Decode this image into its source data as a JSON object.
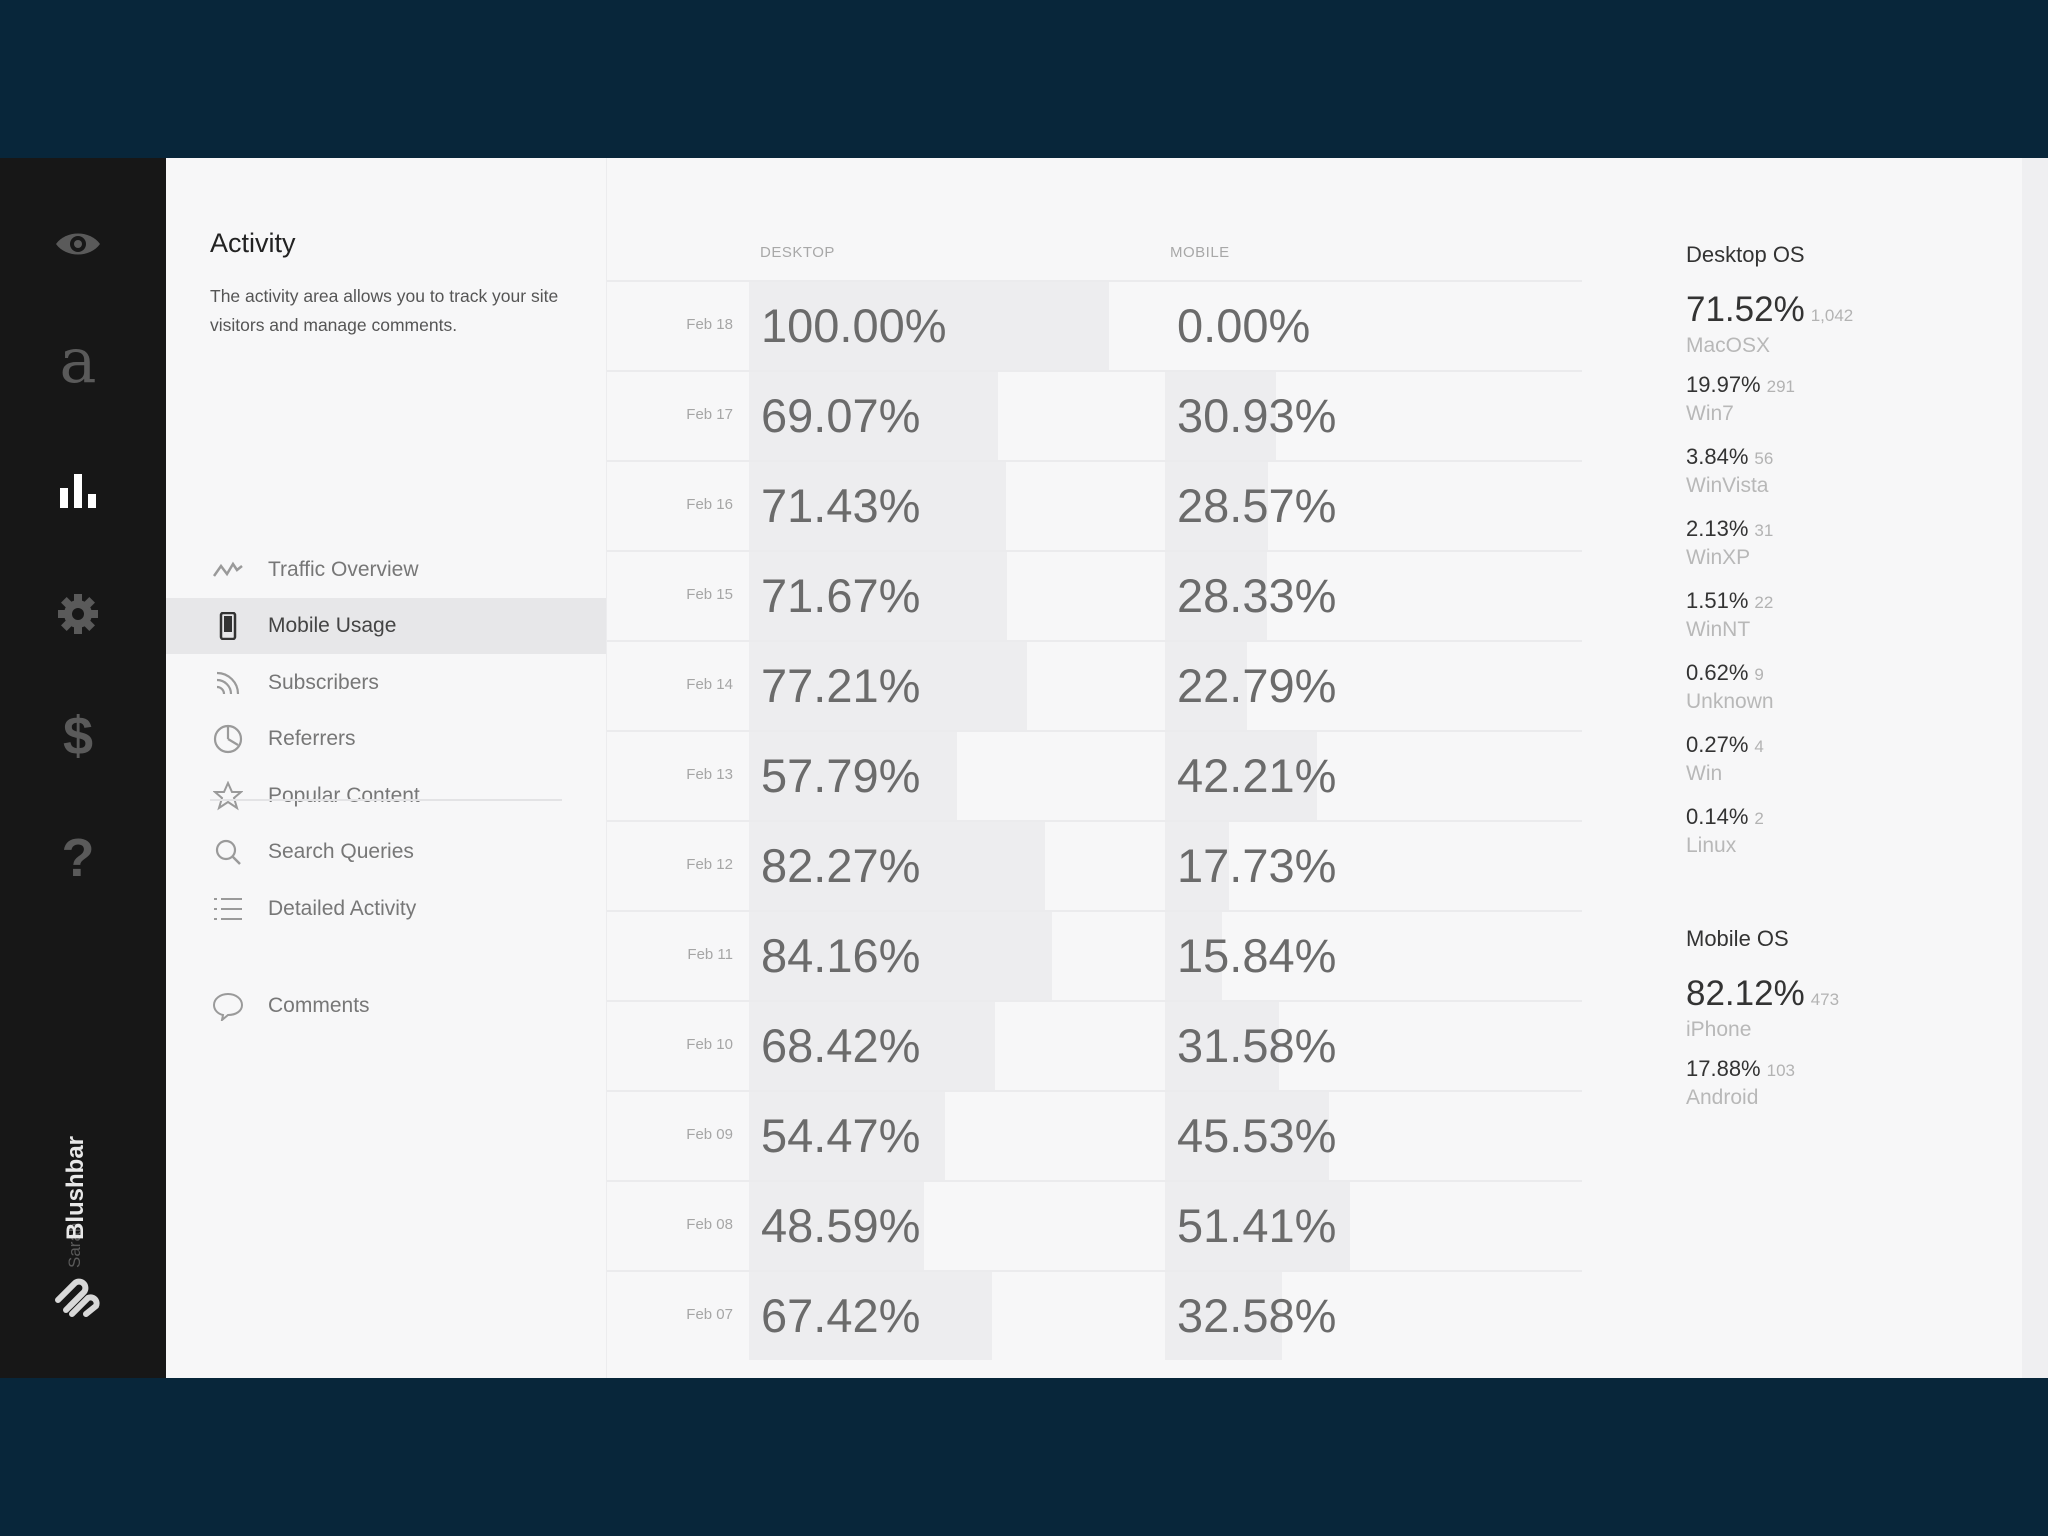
{
  "rail": {
    "items": [
      {
        "name": "view-icon"
      },
      {
        "name": "a-logo",
        "glyph": "a"
      },
      {
        "name": "stats-icon"
      },
      {
        "name": "gear-icon"
      },
      {
        "name": "dollar-icon",
        "glyph": "$"
      },
      {
        "name": "help-icon",
        "glyph": "?"
      }
    ],
    "user": "Sarah",
    "brand": "Blushbar"
  },
  "panel": {
    "title": "Activity",
    "description": "The activity area allows you to track your site visitors and manage comments.",
    "nav": [
      {
        "label": "Traffic Overview",
        "icon": "trend-icon",
        "selected": false
      },
      {
        "label": "Mobile Usage",
        "icon": "phone-icon",
        "selected": true
      },
      {
        "label": "Subscribers",
        "icon": "rss-icon",
        "selected": false
      },
      {
        "label": "Referrers",
        "icon": "pie-icon",
        "selected": false
      },
      {
        "label": "Popular Content",
        "icon": "star-icon",
        "selected": false
      },
      {
        "label": "Search Queries",
        "icon": "search-icon",
        "selected": false
      },
      {
        "label": "Detailed Activity",
        "icon": "list-icon",
        "selected": false
      }
    ],
    "comments": {
      "label": "Comments",
      "icon": "comment-icon"
    }
  },
  "table": {
    "desktop_header": "DESKTOP",
    "mobile_header": "MOBILE",
    "rows": [
      {
        "date": "Feb 18",
        "desktop": "100.00%",
        "desktop_value": 100.0,
        "mobile": "0.00%",
        "mobile_value": 0.0
      },
      {
        "date": "Feb 17",
        "desktop": "69.07%",
        "desktop_value": 69.07,
        "mobile": "30.93%",
        "mobile_value": 30.93
      },
      {
        "date": "Feb 16",
        "desktop": "71.43%",
        "desktop_value": 71.43,
        "mobile": "28.57%",
        "mobile_value": 28.57
      },
      {
        "date": "Feb 15",
        "desktop": "71.67%",
        "desktop_value": 71.67,
        "mobile": "28.33%",
        "mobile_value": 28.33
      },
      {
        "date": "Feb 14",
        "desktop": "77.21%",
        "desktop_value": 77.21,
        "mobile": "22.79%",
        "mobile_value": 22.79
      },
      {
        "date": "Feb 13",
        "desktop": "57.79%",
        "desktop_value": 57.79,
        "mobile": "42.21%",
        "mobile_value": 42.21
      },
      {
        "date": "Feb 12",
        "desktop": "82.27%",
        "desktop_value": 82.27,
        "mobile": "17.73%",
        "mobile_value": 17.73
      },
      {
        "date": "Feb 11",
        "desktop": "84.16%",
        "desktop_value": 84.16,
        "mobile": "15.84%",
        "mobile_value": 15.84
      },
      {
        "date": "Feb 10",
        "desktop": "68.42%",
        "desktop_value": 68.42,
        "mobile": "31.58%",
        "mobile_value": 31.58
      },
      {
        "date": "Feb 09",
        "desktop": "54.47%",
        "desktop_value": 54.47,
        "mobile": "45.53%",
        "mobile_value": 45.53
      },
      {
        "date": "Feb 08",
        "desktop": "48.59%",
        "desktop_value": 48.59,
        "mobile": "51.41%",
        "mobile_value": 51.41
      },
      {
        "date": "Feb 07",
        "desktop": "67.42%",
        "desktop_value": 67.42,
        "mobile": "32.58%",
        "mobile_value": 32.58
      }
    ]
  },
  "desktop_os": {
    "title": "Desktop OS",
    "items": [
      {
        "pct": "71.52%",
        "count": "1,042",
        "os": "MacOSX"
      },
      {
        "pct": "19.97%",
        "count": "291",
        "os": "Win7"
      },
      {
        "pct": "3.84%",
        "count": "56",
        "os": "WinVista"
      },
      {
        "pct": "2.13%",
        "count": "31",
        "os": "WinXP"
      },
      {
        "pct": "1.51%",
        "count": "22",
        "os": "WinNT"
      },
      {
        "pct": "0.62%",
        "count": "9",
        "os": "Unknown"
      },
      {
        "pct": "0.27%",
        "count": "4",
        "os": "Win"
      },
      {
        "pct": "0.14%",
        "count": "2",
        "os": "Linux"
      }
    ]
  },
  "mobile_os": {
    "title": "Mobile OS",
    "items": [
      {
        "pct": "82.12%",
        "count": "473",
        "os": "iPhone"
      },
      {
        "pct": "17.88%",
        "count": "103",
        "os": "Android"
      }
    ]
  },
  "colors": {
    "backdrop": "#08263a",
    "rail": "#171717",
    "panel": "#f7f7f8",
    "bar": "#ededef",
    "selected_row": "#e7e7e9"
  }
}
